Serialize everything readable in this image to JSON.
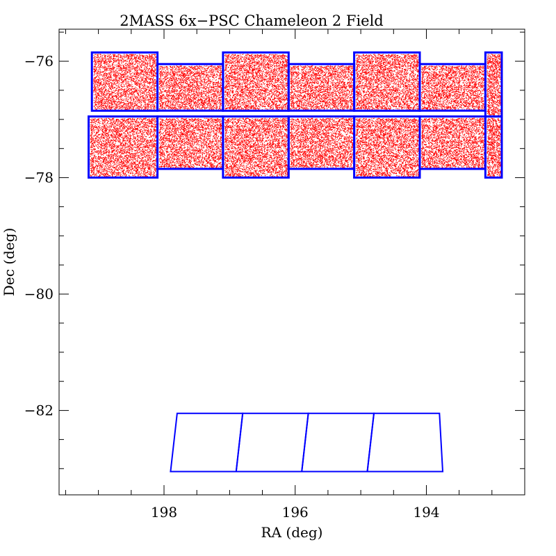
{
  "chart_data": {
    "type": "scatter",
    "title": "2MASS 6x−PSC  Chameleon 2 Field",
    "xlabel": "RA (deg)",
    "ylabel": "Dec (deg)",
    "xlim": [
      199.6,
      192.5
    ],
    "ylim": [
      -83.45,
      -75.45
    ],
    "x_ticks": [
      {
        "value": 198,
        "label": "198"
      },
      {
        "value": 196,
        "label": "196"
      },
      {
        "value": 194,
        "label": "194"
      }
    ],
    "y_ticks": [
      {
        "value": -76,
        "label": "−76"
      },
      {
        "value": -78,
        "label": "−78"
      },
      {
        "value": -80,
        "label": "−80"
      },
      {
        "value": -82,
        "label": "−82"
      }
    ],
    "x_minor_step": 0.5,
    "y_minor_step": 0.5,
    "grid": false,
    "colors": {
      "points": "#ff0000",
      "tiles": "#0000ff",
      "axes": "#000000"
    },
    "series": [
      {
        "kind": "points",
        "description": "dense red point-source scatter filling the upper tile rows",
        "density": "very high",
        "dec_range": [
          -78.0,
          -75.85
        ]
      },
      {
        "kind": "tiles",
        "rows": [
          {
            "tiles": [
              {
                "ra": [
                  199.1,
                  198.1
                ],
                "dec": [
                  -76.85,
                  -75.85
                ]
              },
              {
                "ra": [
                  198.1,
                  197.1
                ],
                "dec": [
                  -76.85,
                  -76.05
                ]
              },
              {
                "ra": [
                  197.1,
                  196.1
                ],
                "dec": [
                  -76.85,
                  -75.85
                ]
              },
              {
                "ra": [
                  196.1,
                  195.1
                ],
                "dec": [
                  -76.85,
                  -76.05
                ]
              },
              {
                "ra": [
                  195.1,
                  194.1
                ],
                "dec": [
                  -76.85,
                  -75.85
                ]
              },
              {
                "ra": [
                  194.1,
                  193.1
                ],
                "dec": [
                  -76.85,
                  -76.05
                ]
              },
              {
                "ra": [
                  193.1,
                  192.85
                ],
                "dec": [
                  -76.95,
                  -75.85
                ]
              }
            ]
          },
          {
            "tiles": [
              {
                "ra": [
                  199.15,
                  198.1
                ],
                "dec": [
                  -78.0,
                  -76.95
                ]
              },
              {
                "ra": [
                  198.1,
                  197.1
                ],
                "dec": [
                  -77.85,
                  -76.95
                ]
              },
              {
                "ra": [
                  197.1,
                  196.1
                ],
                "dec": [
                  -78.0,
                  -76.95
                ]
              },
              {
                "ra": [
                  196.1,
                  195.1
                ],
                "dec": [
                  -77.85,
                  -76.95
                ]
              },
              {
                "ra": [
                  195.1,
                  194.1
                ],
                "dec": [
                  -78.0,
                  -76.95
                ]
              },
              {
                "ra": [
                  194.1,
                  193.1
                ],
                "dec": [
                  -77.85,
                  -76.95
                ]
              },
              {
                "ra": [
                  193.1,
                  192.85
                ],
                "dec": [
                  -78.0,
                  -76.95
                ]
              }
            ]
          }
        ]
      },
      {
        "kind": "tiles",
        "rows": [
          {
            "tiles": [
              {
                "ra_top": [
                  197.8,
                  196.8
                ],
                "ra_bottom": [
                  197.9,
                  196.9
                ],
                "dec": [
                  -83.05,
                  -82.05
                ]
              },
              {
                "ra_top": [
                  196.8,
                  195.8
                ],
                "ra_bottom": [
                  196.9,
                  195.9
                ],
                "dec": [
                  -83.05,
                  -82.05
                ]
              },
              {
                "ra_top": [
                  195.8,
                  194.8
                ],
                "ra_bottom": [
                  195.9,
                  194.9
                ],
                "dec": [
                  -83.05,
                  -82.05
                ]
              },
              {
                "ra_top": [
                  194.8,
                  193.8
                ],
                "ra_bottom": [
                  194.9,
                  193.75
                ],
                "dec": [
                  -83.05,
                  -82.05
                ]
              }
            ]
          }
        ]
      }
    ]
  }
}
